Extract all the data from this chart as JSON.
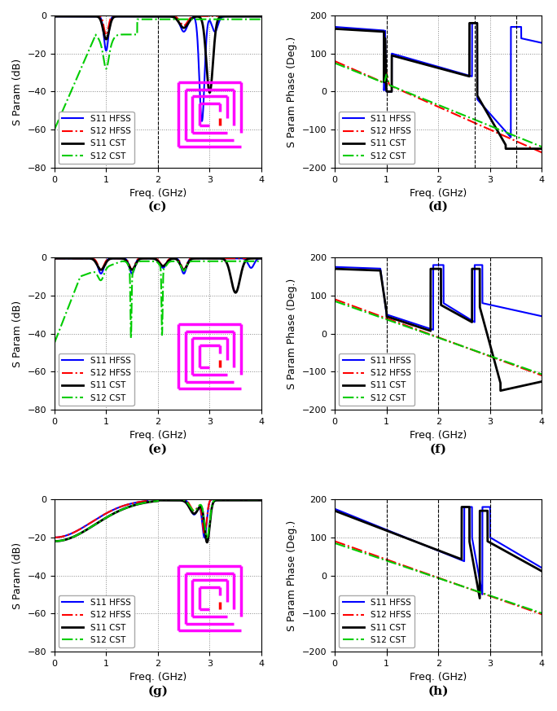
{
  "subplot_labels": [
    "(c)",
    "(d)",
    "(e)",
    "(f)",
    "(g)",
    "(h)"
  ],
  "xlim_mag": [
    0,
    4
  ],
  "xlim_phase": [
    0,
    4
  ],
  "ylim_mag": [
    -80,
    0
  ],
  "ylim_phase": [
    -200,
    200
  ],
  "ylabel_mag": "S Param (dB)",
  "ylabel_phase": "S Param Phase (Deg.)",
  "xlabel_mag": "Freq. (GHz)",
  "xlabel_phase": "Freq. (GHz)",
  "legend_entries": [
    "S11 HFSS",
    "S12 HFSS",
    "S11 CST",
    "S12 CST"
  ],
  "mag_yticks": [
    -80,
    -60,
    -40,
    -20,
    0
  ],
  "phase_yticks": [
    -200,
    -100,
    0,
    100,
    200
  ],
  "mag_xticks": [
    0,
    1,
    2,
    3,
    4
  ],
  "phase_xticks": [
    0,
    1,
    2,
    3,
    4
  ],
  "grid_color": "#888888",
  "spiral_color": "#FF00FF",
  "background_color": "white",
  "line_blue": "#0000FF",
  "line_red": "#FF0000",
  "line_black": "#000000",
  "line_green": "#00CC00"
}
